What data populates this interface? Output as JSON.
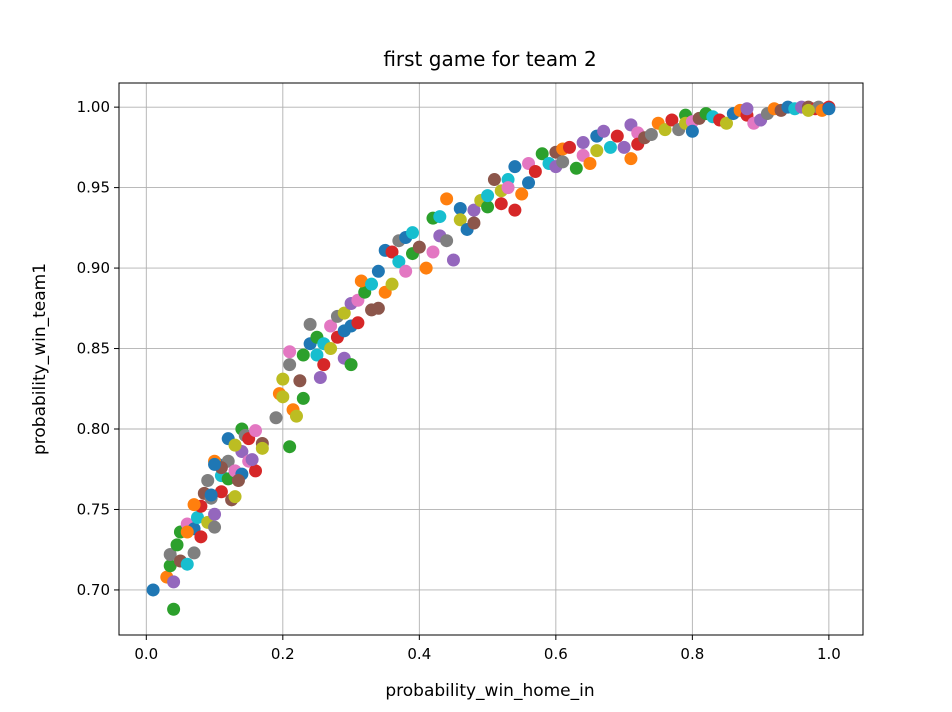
{
  "chart_data": {
    "type": "scatter",
    "title": "first game for team 2",
    "xlabel": "probability_win_home_in",
    "ylabel": "probability_win_team1",
    "xlim": [
      -0.04,
      1.05
    ],
    "ylim": [
      0.672,
      1.015
    ],
    "xticks": [
      0.0,
      0.2,
      0.4,
      0.6,
      0.8,
      1.0
    ],
    "xtick_labels": [
      "0.0",
      "0.2",
      "0.4",
      "0.6",
      "0.8",
      "1.0"
    ],
    "yticks": [
      0.7,
      0.75,
      0.8,
      0.85,
      0.9,
      0.95,
      1.0
    ],
    "ytick_labels": [
      "0.70",
      "0.75",
      "0.80",
      "0.85",
      "0.90",
      "0.95",
      "1.00"
    ],
    "grid": true,
    "legend": "none",
    "colors": [
      "#1f77b4",
      "#ff7f0e",
      "#2ca02c",
      "#d62728",
      "#9467bd",
      "#8c564b",
      "#e377c2",
      "#7f7f7f",
      "#bcbd22",
      "#17becf"
    ],
    "points": [
      [
        0.01,
        0.7,
        0
      ],
      [
        0.03,
        0.708,
        1
      ],
      [
        0.04,
        0.688,
        2
      ],
      [
        0.035,
        0.715,
        2
      ],
      [
        0.04,
        0.705,
        4
      ],
      [
        0.035,
        0.722,
        7
      ],
      [
        0.05,
        0.718,
        5
      ],
      [
        0.06,
        0.716,
        9
      ],
      [
        0.045,
        0.728,
        2
      ],
      [
        0.05,
        0.736,
        2
      ],
      [
        0.06,
        0.741,
        6
      ],
      [
        0.07,
        0.723,
        7
      ],
      [
        0.07,
        0.738,
        0
      ],
      [
        0.08,
        0.733,
        3
      ],
      [
        0.06,
        0.736,
        1
      ],
      [
        0.075,
        0.745,
        9
      ],
      [
        0.08,
        0.752,
        3
      ],
      [
        0.07,
        0.753,
        1
      ],
      [
        0.085,
        0.76,
        5
      ],
      [
        0.09,
        0.742,
        8
      ],
      [
        0.095,
        0.757,
        7
      ],
      [
        0.1,
        0.747,
        4
      ],
      [
        0.1,
        0.739,
        7
      ],
      [
        0.11,
        0.761,
        3
      ],
      [
        0.11,
        0.771,
        9
      ],
      [
        0.105,
        0.778,
        0
      ],
      [
        0.12,
        0.769,
        2
      ],
      [
        0.12,
        0.78,
        7
      ],
      [
        0.125,
        0.756,
        5
      ],
      [
        0.13,
        0.758,
        8
      ],
      [
        0.13,
        0.774,
        6
      ],
      [
        0.14,
        0.772,
        0
      ],
      [
        0.14,
        0.786,
        4
      ],
      [
        0.15,
        0.78,
        6
      ],
      [
        0.14,
        0.8,
        2
      ],
      [
        0.145,
        0.796,
        7
      ],
      [
        0.12,
        0.794,
        0
      ],
      [
        0.13,
        0.79,
        8
      ],
      [
        0.15,
        0.794,
        3
      ],
      [
        0.16,
        0.799,
        6
      ],
      [
        0.17,
        0.791,
        5
      ],
      [
        0.17,
        0.788,
        8
      ],
      [
        0.16,
        0.774,
        3
      ],
      [
        0.1,
        0.78,
        1
      ],
      [
        0.09,
        0.768,
        7
      ],
      [
        0.095,
        0.759,
        0
      ],
      [
        0.11,
        0.776,
        5
      ],
      [
        0.135,
        0.768,
        5
      ],
      [
        0.155,
        0.781,
        4
      ],
      [
        0.1,
        0.778,
        0
      ],
      [
        0.19,
        0.807,
        7
      ],
      [
        0.195,
        0.822,
        1
      ],
      [
        0.2,
        0.82,
        8
      ],
      [
        0.2,
        0.831,
        8
      ],
      [
        0.21,
        0.84,
        7
      ],
      [
        0.21,
        0.848,
        6
      ],
      [
        0.21,
        0.789,
        2
      ],
      [
        0.215,
        0.812,
        1
      ],
      [
        0.22,
        0.808,
        8
      ],
      [
        0.23,
        0.819,
        2
      ],
      [
        0.225,
        0.83,
        5
      ],
      [
        0.23,
        0.846,
        2
      ],
      [
        0.24,
        0.853,
        0
      ],
      [
        0.24,
        0.865,
        7
      ],
      [
        0.25,
        0.846,
        9
      ],
      [
        0.25,
        0.857,
        2
      ],
      [
        0.26,
        0.84,
        3
      ],
      [
        0.255,
        0.832,
        4
      ],
      [
        0.26,
        0.853,
        9
      ],
      [
        0.27,
        0.85,
        8
      ],
      [
        0.27,
        0.864,
        6
      ],
      [
        0.28,
        0.87,
        7
      ],
      [
        0.28,
        0.857,
        3
      ],
      [
        0.29,
        0.861,
        0
      ],
      [
        0.29,
        0.844,
        4
      ],
      [
        0.3,
        0.84,
        2
      ],
      [
        0.29,
        0.872,
        8
      ],
      [
        0.3,
        0.878,
        4
      ],
      [
        0.3,
        0.864,
        0
      ],
      [
        0.31,
        0.866,
        3
      ],
      [
        0.31,
        0.88,
        6
      ],
      [
        0.32,
        0.885,
        2
      ],
      [
        0.315,
        0.892,
        1
      ],
      [
        0.33,
        0.874,
        5
      ],
      [
        0.33,
        0.89,
        9
      ],
      [
        0.34,
        0.898,
        0
      ],
      [
        0.34,
        0.875,
        5
      ],
      [
        0.35,
        0.885,
        1
      ],
      [
        0.35,
        0.911,
        0
      ],
      [
        0.36,
        0.89,
        8
      ],
      [
        0.36,
        0.91,
        3
      ],
      [
        0.37,
        0.917,
        7
      ],
      [
        0.37,
        0.904,
        9
      ],
      [
        0.38,
        0.919,
        0
      ],
      [
        0.38,
        0.898,
        6
      ],
      [
        0.39,
        0.922,
        9
      ],
      [
        0.39,
        0.909,
        2
      ],
      [
        0.4,
        0.913,
        5
      ],
      [
        0.41,
        0.9,
        1
      ],
      [
        0.42,
        0.931,
        2
      ],
      [
        0.42,
        0.91,
        6
      ],
      [
        0.43,
        0.932,
        9
      ],
      [
        0.43,
        0.92,
        4
      ],
      [
        0.44,
        0.943,
        1
      ],
      [
        0.44,
        0.917,
        7
      ],
      [
        0.45,
        0.905,
        4
      ],
      [
        0.46,
        0.937,
        0
      ],
      [
        0.46,
        0.93,
        8
      ],
      [
        0.47,
        0.924,
        0
      ],
      [
        0.48,
        0.936,
        4
      ],
      [
        0.48,
        0.928,
        5
      ],
      [
        0.49,
        0.942,
        8
      ],
      [
        0.5,
        0.938,
        2
      ],
      [
        0.5,
        0.945,
        9
      ],
      [
        0.51,
        0.955,
        5
      ],
      [
        0.52,
        0.948,
        8
      ],
      [
        0.52,
        0.94,
        3
      ],
      [
        0.53,
        0.955,
        9
      ],
      [
        0.53,
        0.95,
        6
      ],
      [
        0.54,
        0.963,
        0
      ],
      [
        0.54,
        0.936,
        3
      ],
      [
        0.55,
        0.946,
        1
      ],
      [
        0.56,
        0.953,
        0
      ],
      [
        0.56,
        0.965,
        6
      ],
      [
        0.57,
        0.96,
        3
      ],
      [
        0.58,
        0.971,
        2
      ],
      [
        0.59,
        0.965,
        9
      ],
      [
        0.6,
        0.963,
        4
      ],
      [
        0.6,
        0.972,
        5
      ],
      [
        0.61,
        0.974,
        1
      ],
      [
        0.61,
        0.966,
        7
      ],
      [
        0.62,
        0.975,
        3
      ],
      [
        0.63,
        0.962,
        2
      ],
      [
        0.64,
        0.97,
        6
      ],
      [
        0.64,
        0.978,
        4
      ],
      [
        0.65,
        0.965,
        1
      ],
      [
        0.66,
        0.982,
        0
      ],
      [
        0.66,
        0.973,
        8
      ],
      [
        0.67,
        0.985,
        4
      ],
      [
        0.68,
        0.975,
        9
      ],
      [
        0.69,
        0.982,
        3
      ],
      [
        0.7,
        0.975,
        4
      ],
      [
        0.71,
        0.968,
        1
      ],
      [
        0.71,
        0.989,
        4
      ],
      [
        0.72,
        0.984,
        6
      ],
      [
        0.72,
        0.977,
        3
      ],
      [
        0.73,
        0.981,
        5
      ],
      [
        0.74,
        0.983,
        7
      ],
      [
        0.75,
        0.99,
        1
      ],
      [
        0.76,
        0.986,
        8
      ],
      [
        0.77,
        0.992,
        3
      ],
      [
        0.78,
        0.986,
        7
      ],
      [
        0.79,
        0.995,
        2
      ],
      [
        0.79,
        0.99,
        8
      ],
      [
        0.8,
        0.991,
        6
      ],
      [
        0.8,
        0.985,
        0
      ],
      [
        0.81,
        0.993,
        5
      ],
      [
        0.82,
        0.996,
        2
      ],
      [
        0.83,
        0.994,
        9
      ],
      [
        0.84,
        0.992,
        3
      ],
      [
        0.85,
        0.99,
        8
      ],
      [
        0.86,
        0.996,
        0
      ],
      [
        0.87,
        0.998,
        1
      ],
      [
        0.88,
        0.995,
        3
      ],
      [
        0.88,
        0.999,
        4
      ],
      [
        0.89,
        0.99,
        6
      ],
      [
        0.9,
        0.992,
        4
      ],
      [
        0.91,
        0.996,
        7
      ],
      [
        0.92,
        0.999,
        1
      ],
      [
        0.93,
        0.998,
        5
      ],
      [
        0.94,
        1.0,
        0
      ],
      [
        0.95,
        0.999,
        9
      ],
      [
        0.96,
        1.0,
        4
      ],
      [
        0.97,
        1.0,
        5
      ],
      [
        0.98,
        0.999,
        3
      ],
      [
        0.985,
        1.0,
        7
      ],
      [
        0.99,
        0.998,
        1
      ],
      [
        1.0,
        1.0,
        3
      ],
      [
        1.0,
        0.999,
        0
      ],
      [
        0.97,
        0.998,
        8
      ]
    ]
  }
}
